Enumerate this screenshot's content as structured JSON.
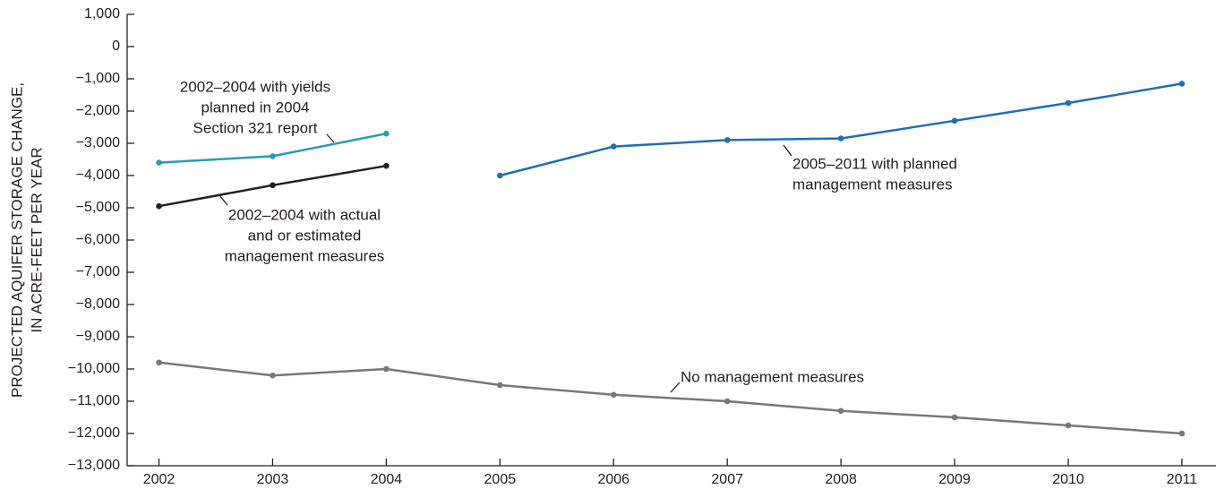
{
  "chart_data": {
    "type": "line",
    "ylabel": [
      "PROJECTED AQUIFER STORAGE CHANGE,",
      "IN ACRE-FEET PER YEAR"
    ],
    "x": [
      2002,
      2003,
      2004,
      2005,
      2006,
      2007,
      2008,
      2009,
      2010,
      2011
    ],
    "series": [
      {
        "color": "#2a9ab8",
        "values": [
          -3600,
          -3400,
          -2700,
          null,
          null,
          null,
          null,
          null,
          null,
          null
        ]
      },
      {
        "color": "#231f20",
        "values": [
          -4950,
          -4300,
          -3700,
          null,
          null,
          null,
          null,
          null,
          null,
          null
        ]
      },
      {
        "color": "#1f6fb5",
        "values": [
          null,
          null,
          null,
          -4000,
          -3100,
          -2900,
          -2850,
          -2300,
          -1750,
          -1150
        ]
      },
      {
        "color": "#77787b",
        "values": [
          -9800,
          -10200,
          -10000,
          -10500,
          -10800,
          -11000,
          -11300,
          -11500,
          -11750,
          -12000
        ]
      }
    ],
    "annotations": [
      [
        "2002–2004 with yields",
        "planned in 2004",
        "Section 321 report"
      ],
      [
        "2002–2004 with actual",
        "and or estimated",
        "management measures"
      ],
      [
        "2005–2011 with planned",
        "management measures"
      ],
      [
        "No management measures"
      ]
    ],
    "xlim": [
      2001.72,
      2011.3
    ],
    "xticks": [
      2002,
      2003,
      2004,
      2005,
      2006,
      2007,
      2008,
      2009,
      2010,
      2011
    ],
    "ylim": [
      -13000,
      1000
    ],
    "yticks": [
      {
        "value": 1000,
        "label": "1,000"
      },
      0,
      {
        "value": -1000,
        "label": "−1,000"
      },
      {
        "value": -2000,
        "label": "−2,000"
      },
      {
        "value": -3000,
        "label": "−3,000"
      },
      {
        "value": -4000,
        "label": "−4,000"
      },
      {
        "value": -5000,
        "label": "−5,000"
      },
      {
        "value": -6000,
        "label": "−6,000"
      },
      {
        "value": -7000,
        "label": "−7,000"
      },
      {
        "value": -8000,
        "label": "−8,000"
      },
      {
        "value": -9000,
        "label": "−9,000"
      },
      {
        "value": -10000,
        "label": "−10,000"
      },
      {
        "value": -11000,
        "label": "−11,000"
      },
      {
        "value": -12000,
        "label": "−12,000"
      },
      {
        "value": -13000,
        "label": "−13,000"
      }
    ],
    "grid": false
  }
}
